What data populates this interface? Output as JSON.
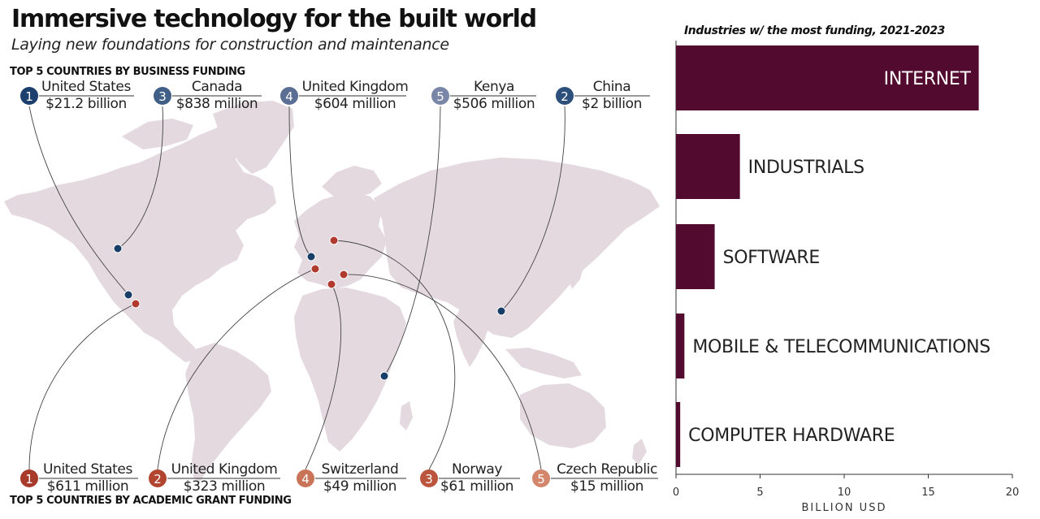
{
  "title": "Immersive technology for the built world",
  "subtitle": "Laying new foundations for construction and maintenance",
  "map": {
    "business_heading": "TOP 5 COUNTRIES BY BUSINESS FUNDING",
    "grant_heading": "TOP 5 COUNTRIES BY ACADEMIC GRANT FUNDING",
    "business": [
      {
        "rank": "1",
        "country": "United States",
        "value": "$21.2 billion",
        "color": "#1c3f6e"
      },
      {
        "rank": "3",
        "country": "Canada",
        "value": "$838 million",
        "color": "#3f5f86"
      },
      {
        "rank": "4",
        "country": "United Kingdom",
        "value": "$604 million",
        "color": "#5a6f93"
      },
      {
        "rank": "5",
        "country": "Kenya",
        "value": "$506 million",
        "color": "#7a86a8"
      },
      {
        "rank": "2",
        "country": "China",
        "value": "$2 billion",
        "color": "#2c4f7c"
      }
    ],
    "grant": [
      {
        "rank": "1",
        "country": "United States",
        "value": "$611 million",
        "color": "#a83a2c"
      },
      {
        "rank": "2",
        "country": "United Kingdom",
        "value": "$323 million",
        "color": "#b1452f"
      },
      {
        "rank": "4",
        "country": "Switzerland",
        "value": "$49 million",
        "color": "#c97358"
      },
      {
        "rank": "3",
        "country": "Norway",
        "value": "$61 million",
        "color": "#bb553d"
      },
      {
        "rank": "5",
        "country": "Czech Republic",
        "value": "$15 million",
        "color": "#d3866b"
      }
    ],
    "land_color": "#e3d9de",
    "business_dot_color": "#183d66",
    "grant_dot_color": "#b03a2e"
  },
  "chart_data": {
    "type": "bar",
    "title": "Industries w/ the most funding, 2021-2023",
    "categories": [
      "INTERNET",
      "INDUSTRIALS",
      "SOFTWARE",
      "MOBILE & TELECOMMUNICATIONS",
      "COMPUTER HARDWARE"
    ],
    "values": [
      18.0,
      3.8,
      2.3,
      0.5,
      0.25
    ],
    "xlabel": "BILLION USD",
    "xlim": [
      0,
      20
    ],
    "xticks": [
      0,
      5,
      10,
      15,
      20
    ],
    "bar_color": "#520a2e",
    "orientation": "horizontal"
  }
}
